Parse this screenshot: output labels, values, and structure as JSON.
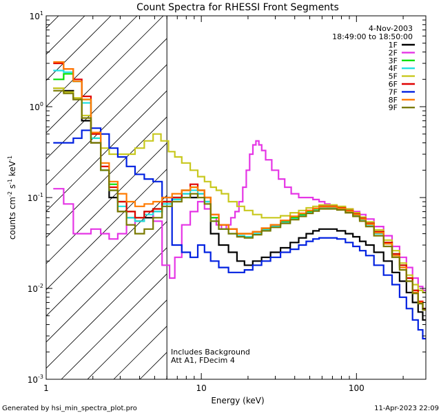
{
  "chart_data": {
    "type": "line",
    "title": "Count Spectra for RHESSI Front Segments",
    "xlabel": "Energy (keV)",
    "ylabel_parts": [
      "counts cm",
      "-2",
      " s",
      "-1",
      " keV",
      "-1"
    ],
    "xscale": "log",
    "yscale": "log",
    "xlim": [
      1,
      280
    ],
    "ylim": [
      0.001,
      10
    ],
    "x_ticks": [
      {
        "value": 1,
        "label": "1"
      },
      {
        "value": 10,
        "label": "10"
      },
      {
        "value": 100,
        "label": "100"
      }
    ],
    "y_ticks": [
      {
        "value": 0.001,
        "base": "10",
        "exp": "-3"
      },
      {
        "value": 0.01,
        "base": "10",
        "exp": "-2"
      },
      {
        "value": 0.1,
        "base": "10",
        "exp": "-1"
      },
      {
        "value": 1,
        "base": "10",
        "exp": "0"
      },
      {
        "value": 10,
        "base": "10",
        "exp": "1"
      }
    ],
    "shaded_region": {
      "x_min": 1,
      "x_max": 6,
      "style": "diagonal hatch"
    },
    "legend_position": "top-right",
    "annotations": {
      "date": "4-Nov-2003",
      "time_range": "18:49:00 to 18:50:00",
      "note_line1": "Includes Background",
      "note_line2": "Att A1, FDecim  4"
    },
    "series": [
      {
        "name": "1F",
        "color": "#000000",
        "x": [
          1.2,
          1.4,
          1.6,
          1.8,
          2.1,
          2.4,
          2.7,
          3.1,
          3.5,
          4.0,
          4.6,
          5.2,
          6,
          7,
          8,
          9,
          10,
          11,
          12,
          14,
          16,
          18,
          20,
          23,
          26,
          30,
          35,
          40,
          45,
          50,
          55,
          60,
          70,
          80,
          90,
          100,
          110,
          120,
          140,
          160,
          180,
          200,
          220,
          240,
          260,
          275
        ],
        "y": [
          1.6,
          1.5,
          1.2,
          0.7,
          0.4,
          0.2,
          0.1,
          0.07,
          0.06,
          0.055,
          0.06,
          0.07,
          0.09,
          0.1,
          0.11,
          0.1,
          0.11,
          0.09,
          0.04,
          0.03,
          0.025,
          0.02,
          0.018,
          0.02,
          0.022,
          0.025,
          0.028,
          0.032,
          0.036,
          0.04,
          0.043,
          0.045,
          0.045,
          0.043,
          0.04,
          0.037,
          0.033,
          0.03,
          0.025,
          0.02,
          0.015,
          0.012,
          0.009,
          0.007,
          0.0055,
          0.0045
        ]
      },
      {
        "name": "2F",
        "color": "#e535e5",
        "x": [
          1.2,
          1.4,
          1.6,
          1.8,
          2.1,
          2.4,
          2.7,
          3.1,
          3.5,
          4.0,
          4.6,
          5.2,
          6,
          6.5,
          7,
          8,
          9,
          10,
          11,
          12,
          13,
          14,
          15,
          16,
          17,
          18,
          19,
          20,
          21,
          22,
          23,
          24,
          25,
          27,
          30,
          33,
          36,
          40,
          45,
          50,
          55,
          60,
          65,
          70,
          80,
          90,
          100,
          110,
          120,
          140,
          160,
          180,
          200,
          220,
          240,
          260,
          275
        ],
        "y": [
          0.125,
          0.085,
          0.04,
          0.04,
          0.045,
          0.04,
          0.035,
          0.04,
          0.05,
          0.06,
          0.07,
          0.055,
          0.018,
          0.013,
          0.022,
          0.05,
          0.07,
          0.09,
          0.075,
          0.06,
          0.05,
          0.045,
          0.05,
          0.06,
          0.07,
          0.09,
          0.13,
          0.2,
          0.3,
          0.38,
          0.42,
          0.38,
          0.33,
          0.26,
          0.2,
          0.16,
          0.13,
          0.11,
          0.1,
          0.1,
          0.095,
          0.09,
          0.085,
          0.08,
          0.078,
          0.075,
          0.07,
          0.065,
          0.058,
          0.048,
          0.038,
          0.029,
          0.022,
          0.017,
          0.013,
          0.0105,
          0.0095
        ]
      },
      {
        "name": "3F",
        "color": "#00e000",
        "x": [
          1.2,
          1.4,
          1.6,
          1.8,
          2.1,
          2.4,
          2.7,
          3.1,
          3.5,
          4.0,
          4.6,
          5.2,
          6,
          7,
          8,
          9,
          10,
          11,
          12,
          14,
          16,
          18,
          20,
          23,
          26,
          30,
          35,
          40,
          45,
          50,
          55,
          60,
          70,
          80,
          90,
          100,
          110,
          120,
          140,
          160,
          180,
          200,
          220,
          240,
          260,
          275
        ],
        "y": [
          2.0,
          2.3,
          1.9,
          1.2,
          0.45,
          0.2,
          0.14,
          0.09,
          0.07,
          0.06,
          0.07,
          0.075,
          0.09,
          0.1,
          0.12,
          0.13,
          0.12,
          0.1,
          0.06,
          0.05,
          0.045,
          0.04,
          0.04,
          0.042,
          0.045,
          0.05,
          0.055,
          0.06,
          0.065,
          0.07,
          0.075,
          0.08,
          0.08,
          0.078,
          0.073,
          0.067,
          0.06,
          0.052,
          0.042,
          0.032,
          0.024,
          0.018,
          0.013,
          0.0095,
          0.007,
          0.006
        ]
      },
      {
        "name": "4F",
        "color": "#20e0e0",
        "x": [
          1.2,
          1.4,
          1.6,
          1.8,
          2.1,
          2.4,
          2.7,
          3.1,
          3.5,
          4.0,
          4.6,
          5.2,
          6,
          7,
          8,
          9,
          10,
          11,
          12,
          14,
          16,
          18,
          20,
          23,
          26,
          30,
          35,
          40,
          45,
          50,
          55,
          60,
          70,
          80,
          90,
          100,
          110,
          120,
          140,
          160,
          180,
          200,
          220,
          240,
          260,
          275
        ],
        "y": [
          2.5,
          2.4,
          1.9,
          1.1,
          0.45,
          0.2,
          0.12,
          0.08,
          0.06,
          0.055,
          0.065,
          0.07,
          0.085,
          0.095,
          0.11,
          0.12,
          0.11,
          0.09,
          0.055,
          0.045,
          0.04,
          0.038,
          0.037,
          0.04,
          0.044,
          0.048,
          0.053,
          0.058,
          0.063,
          0.068,
          0.072,
          0.076,
          0.077,
          0.075,
          0.07,
          0.064,
          0.057,
          0.05,
          0.04,
          0.031,
          0.023,
          0.017,
          0.012,
          0.009,
          0.007,
          0.006
        ]
      },
      {
        "name": "5F",
        "color": "#c8c81e",
        "x": [
          1.2,
          1.4,
          1.6,
          1.8,
          2.1,
          2.4,
          2.7,
          3.1,
          3.5,
          4.0,
          4.6,
          5.2,
          5.8,
          6.5,
          7,
          8,
          9,
          10,
          11,
          12,
          13,
          14,
          16,
          18,
          20,
          23,
          26,
          30,
          35,
          40,
          45,
          50,
          55,
          60,
          70,
          80,
          90,
          100,
          110,
          120,
          140,
          160,
          180,
          200,
          220,
          240,
          260,
          275
        ],
        "y": [
          1.6,
          1.45,
          1.25,
          0.8,
          0.5,
          0.35,
          0.3,
          0.3,
          0.3,
          0.35,
          0.42,
          0.5,
          0.42,
          0.32,
          0.28,
          0.24,
          0.2,
          0.17,
          0.15,
          0.13,
          0.12,
          0.11,
          0.09,
          0.08,
          0.072,
          0.065,
          0.06,
          0.06,
          0.063,
          0.068,
          0.072,
          0.077,
          0.08,
          0.083,
          0.083,
          0.08,
          0.075,
          0.068,
          0.061,
          0.054,
          0.044,
          0.034,
          0.026,
          0.019,
          0.014,
          0.011,
          0.0095,
          0.009
        ]
      },
      {
        "name": "6F",
        "color": "#e00000",
        "x": [
          1.2,
          1.4,
          1.6,
          1.8,
          2.1,
          2.4,
          2.7,
          3.1,
          3.5,
          4.0,
          4.6,
          5.2,
          6,
          7,
          8,
          9,
          10,
          11,
          12,
          14,
          16,
          18,
          20,
          23,
          26,
          30,
          35,
          40,
          45,
          50,
          55,
          60,
          70,
          80,
          90,
          100,
          110,
          120,
          140,
          160,
          180,
          200,
          220,
          240,
          260,
          275
        ],
        "y": [
          3.0,
          2.6,
          2.0,
          1.3,
          0.5,
          0.22,
          0.13,
          0.09,
          0.07,
          0.06,
          0.07,
          0.075,
          0.09,
          0.1,
          0.12,
          0.14,
          0.12,
          0.1,
          0.065,
          0.05,
          0.045,
          0.04,
          0.04,
          0.042,
          0.046,
          0.05,
          0.056,
          0.062,
          0.067,
          0.072,
          0.076,
          0.08,
          0.08,
          0.077,
          0.072,
          0.066,
          0.059,
          0.052,
          0.042,
          0.032,
          0.024,
          0.018,
          0.013,
          0.0095,
          0.0072,
          0.006
        ]
      },
      {
        "name": "7F",
        "color": "#0020e0",
        "x": [
          1.2,
          1.4,
          1.6,
          1.8,
          2.1,
          2.4,
          2.7,
          3.1,
          3.5,
          4.0,
          4.6,
          5.2,
          6,
          7,
          8,
          9,
          10,
          11,
          12,
          14,
          16,
          18,
          20,
          23,
          26,
          30,
          35,
          40,
          45,
          50,
          55,
          60,
          70,
          80,
          90,
          100,
          110,
          120,
          140,
          160,
          180,
          200,
          220,
          240,
          260,
          275
        ],
        "y": [
          0.4,
          0.4,
          0.45,
          0.55,
          0.58,
          0.5,
          0.35,
          0.28,
          0.22,
          0.18,
          0.16,
          0.15,
          0.1,
          0.03,
          0.025,
          0.022,
          0.03,
          0.025,
          0.02,
          0.017,
          0.015,
          0.015,
          0.016,
          0.018,
          0.02,
          0.022,
          0.025,
          0.027,
          0.03,
          0.033,
          0.035,
          0.036,
          0.036,
          0.035,
          0.032,
          0.029,
          0.026,
          0.023,
          0.018,
          0.014,
          0.011,
          0.008,
          0.006,
          0.0045,
          0.0035,
          0.0028
        ]
      },
      {
        "name": "8F",
        "color": "#ff7a00",
        "x": [
          1.2,
          1.4,
          1.6,
          1.8,
          2.1,
          2.4,
          2.7,
          3.1,
          3.5,
          4.0,
          4.6,
          5.2,
          6,
          7,
          8,
          9,
          10,
          11,
          12,
          14,
          16,
          18,
          20,
          23,
          26,
          30,
          35,
          40,
          45,
          50,
          55,
          60,
          70,
          80,
          90,
          100,
          110,
          120,
          140,
          160,
          180,
          200,
          220,
          240,
          260,
          275
        ],
        "y": [
          3.1,
          2.6,
          1.9,
          1.2,
          0.52,
          0.24,
          0.15,
          0.11,
          0.09,
          0.08,
          0.085,
          0.09,
          0.1,
          0.11,
          0.12,
          0.13,
          0.12,
          0.1,
          0.065,
          0.05,
          0.045,
          0.04,
          0.04,
          0.042,
          0.046,
          0.05,
          0.056,
          0.062,
          0.067,
          0.072,
          0.076,
          0.079,
          0.079,
          0.076,
          0.071,
          0.065,
          0.058,
          0.051,
          0.041,
          0.031,
          0.023,
          0.017,
          0.012,
          0.009,
          0.007,
          0.0058
        ]
      },
      {
        "name": "9F",
        "color": "#7a7a00",
        "x": [
          1.2,
          1.4,
          1.6,
          1.8,
          2.1,
          2.4,
          2.7,
          3.1,
          3.5,
          4.0,
          4.6,
          5.2,
          6,
          7,
          8,
          9,
          10,
          11,
          12,
          14,
          16,
          18,
          20,
          23,
          26,
          30,
          35,
          40,
          45,
          50,
          55,
          60,
          70,
          80,
          90,
          100,
          110,
          120,
          140,
          160,
          180,
          200,
          220,
          240,
          260,
          275
        ],
        "y": [
          1.5,
          1.4,
          1.2,
          0.75,
          0.4,
          0.2,
          0.12,
          0.07,
          0.05,
          0.04,
          0.045,
          0.06,
          0.08,
          0.09,
          0.1,
          0.11,
          0.1,
          0.085,
          0.055,
          0.045,
          0.04,
          0.037,
          0.036,
          0.039,
          0.043,
          0.047,
          0.052,
          0.057,
          0.062,
          0.067,
          0.071,
          0.075,
          0.075,
          0.073,
          0.068,
          0.062,
          0.055,
          0.048,
          0.038,
          0.029,
          0.022,
          0.016,
          0.012,
          0.0088,
          0.0068,
          0.0058
        ]
      }
    ]
  },
  "footer": {
    "generated_by": "Generated by hsi_min_spectra_plot.pro",
    "timestamp": "11-Apr-2023 22:09"
  }
}
